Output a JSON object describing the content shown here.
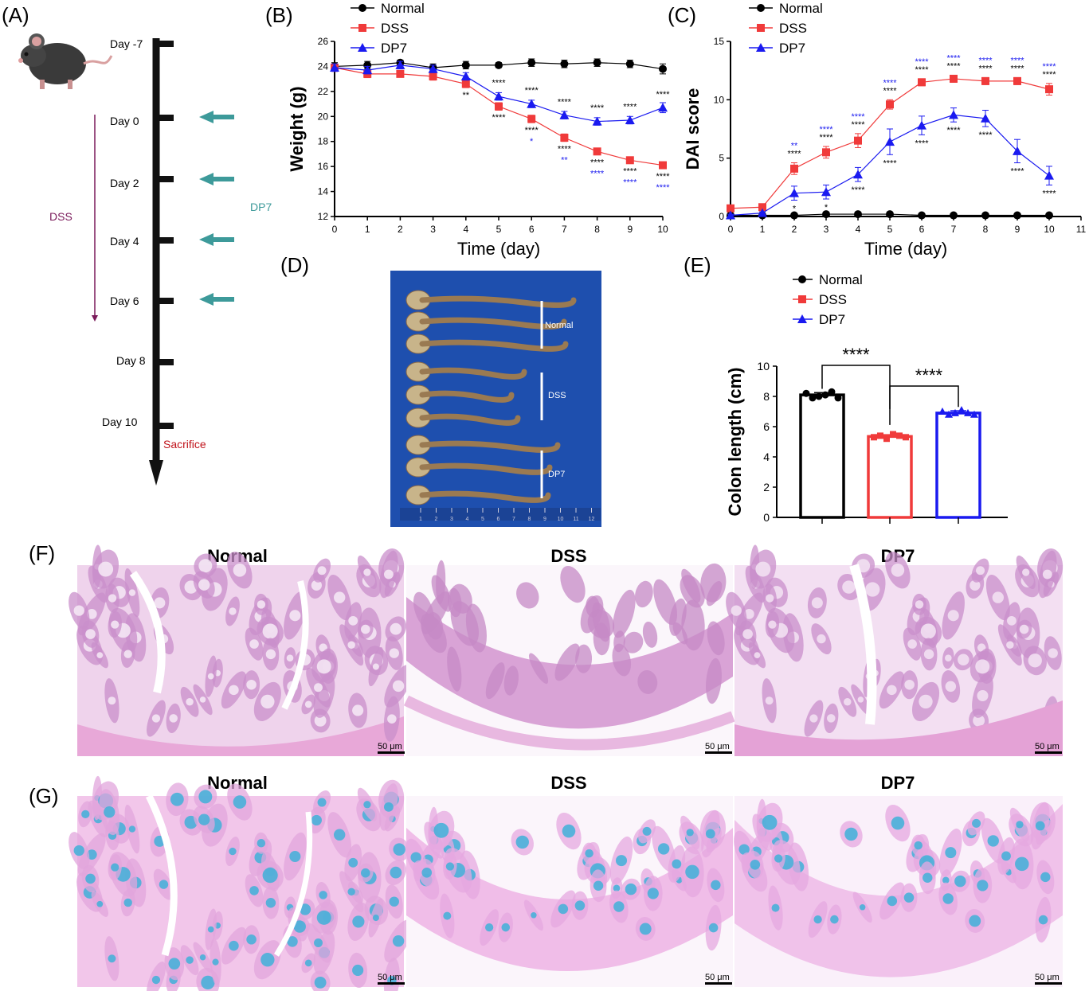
{
  "panel_labels": [
    "(A)",
    "(B)",
    "(C)",
    "(D)",
    "(E)",
    "(F)",
    "(G)"
  ],
  "colors": {
    "normal": "#000000",
    "dss": "#f03a3a",
    "dp7": "#1a1af0",
    "dss_arrow": "#7a1a5a",
    "dp7_arrow": "#3d9a9a",
    "sacrifice": "#c0121a",
    "he_stain": "#d9a3d6",
    "ab_stain": "#3fb0d8",
    "photo_bg": "#1e4fae"
  },
  "timeline": {
    "days": [
      "Day -7",
      "Day 0",
      "Day 2",
      "Day 4",
      "Day 6",
      "Day 8",
      "Day 10"
    ],
    "dss_label": "DSS",
    "dp7_label": "DP7",
    "sacrifice_label": "Sacrifice",
    "mouse_icon": "mouse-icon"
  },
  "chart_data": [
    {
      "panel": "(B)",
      "type": "line",
      "xlabel": "Time (day)",
      "ylabel": "Weight (g)",
      "xlim": [
        0,
        10
      ],
      "ylim": [
        12,
        26
      ],
      "xticks": [
        "0",
        "1",
        "2",
        "3",
        "4",
        "5",
        "6",
        "7",
        "8",
        "9",
        "10"
      ],
      "yticks": [
        "12",
        "14",
        "16",
        "18",
        "20",
        "22",
        "24",
        "26"
      ],
      "legend_position": "top",
      "x": [
        0,
        1,
        2,
        3,
        4,
        5,
        6,
        7,
        8,
        9,
        10
      ],
      "series": [
        {
          "name": "Normal",
          "marker": "circle",
          "values": [
            24.0,
            24.1,
            24.3,
            23.9,
            24.1,
            24.1,
            24.3,
            24.2,
            24.3,
            24.2,
            23.8
          ],
          "errors": [
            0.3,
            0.3,
            0.2,
            0.3,
            0.3,
            0.2,
            0.3,
            0.3,
            0.3,
            0.3,
            0.4
          ]
        },
        {
          "name": "DSS",
          "marker": "square",
          "values": [
            23.9,
            23.4,
            23.4,
            23.2,
            22.6,
            20.8,
            19.8,
            18.3,
            17.2,
            16.5,
            16.1
          ],
          "errors": [
            0.3,
            0.3,
            0.2,
            0.3,
            0.3,
            0.3,
            0.3,
            0.3,
            0.2,
            0.2,
            0.2
          ]
        },
        {
          "name": "DP7",
          "marker": "triangle",
          "values": [
            23.9,
            23.7,
            24.1,
            23.8,
            23.2,
            21.6,
            21.0,
            20.1,
            19.6,
            19.7,
            20.7
          ],
          "errors": [
            0.3,
            0.3,
            0.3,
            0.3,
            0.3,
            0.3,
            0.3,
            0.3,
            0.3,
            0.3,
            0.4
          ]
        }
      ],
      "annotations": [
        {
          "x": 4,
          "text": "**",
          "color": "black"
        },
        {
          "x": 5,
          "text": "****",
          "color": "black",
          "pos": "upper"
        },
        {
          "x": 5,
          "text": "****",
          "color": "black"
        },
        {
          "x": 6,
          "text": "****",
          "color": "black",
          "pos": "upper"
        },
        {
          "x": 6,
          "text": "****",
          "color": "black"
        },
        {
          "x": 6,
          "text": "*",
          "color": "blue"
        },
        {
          "x": 7,
          "text": "****",
          "color": "black",
          "pos": "upper"
        },
        {
          "x": 7,
          "text": "****",
          "color": "black"
        },
        {
          "x": 7,
          "text": "**",
          "color": "blue"
        },
        {
          "x": 8,
          "text": "****",
          "color": "black",
          "pos": "upper"
        },
        {
          "x": 8,
          "text": "****",
          "color": "black"
        },
        {
          "x": 8,
          "text": "****",
          "color": "blue"
        },
        {
          "x": 9,
          "text": "****",
          "color": "black",
          "pos": "upper"
        },
        {
          "x": 9,
          "text": "****",
          "color": "black"
        },
        {
          "x": 9,
          "text": "****",
          "color": "blue"
        },
        {
          "x": 10,
          "text": "****",
          "color": "black",
          "pos": "upper"
        },
        {
          "x": 10,
          "text": "****",
          "color": "black"
        },
        {
          "x": 10,
          "text": "****",
          "color": "blue"
        }
      ]
    },
    {
      "panel": "(C)",
      "type": "line",
      "xlabel": "Time (day)",
      "ylabel": "DAI score",
      "xlim": [
        0,
        11
      ],
      "ylim": [
        0,
        15
      ],
      "xticks": [
        "0",
        "1",
        "2",
        "3",
        "4",
        "5",
        "6",
        "7",
        "8",
        "9",
        "10",
        "11"
      ],
      "yticks": [
        "0",
        "5",
        "10",
        "15"
      ],
      "legend_position": "top",
      "x": [
        0,
        1,
        2,
        3,
        4,
        5,
        6,
        7,
        8,
        9,
        10
      ],
      "series": [
        {
          "name": "Normal",
          "marker": "circle",
          "values": [
            0.1,
            0.1,
            0.1,
            0.2,
            0.2,
            0.2,
            0.1,
            0.1,
            0.1,
            0.1,
            0.1
          ],
          "errors": [
            0.1,
            0.1,
            0.1,
            0.1,
            0.1,
            0.1,
            0.1,
            0.1,
            0.1,
            0.1,
            0.1
          ]
        },
        {
          "name": "DSS",
          "marker": "square",
          "values": [
            0.7,
            0.8,
            4.1,
            5.5,
            6.5,
            9.6,
            11.5,
            11.8,
            11.6,
            11.6,
            10.9
          ],
          "errors": [
            0.2,
            0.2,
            0.5,
            0.5,
            0.6,
            0.4,
            0.3,
            0.3,
            0.3,
            0.3,
            0.5
          ]
        },
        {
          "name": "DP7",
          "marker": "triangle",
          "values": [
            0.1,
            0.3,
            2.0,
            2.1,
            3.6,
            6.4,
            7.8,
            8.7,
            8.4,
            5.6,
            3.5
          ],
          "errors": [
            0.1,
            0.1,
            0.6,
            0.6,
            0.6,
            1.1,
            0.8,
            0.6,
            0.7,
            1.0,
            0.8
          ]
        }
      ],
      "annotations": [
        {
          "x": 2,
          "text": "**",
          "color": "blue"
        },
        {
          "x": 2,
          "text": "****",
          "color": "black"
        },
        {
          "x": 2,
          "text": "*",
          "color": "black",
          "pos": "lower"
        },
        {
          "x": 3,
          "text": "****",
          "color": "blue"
        },
        {
          "x": 3,
          "text": "****",
          "color": "black"
        },
        {
          "x": 3,
          "text": "*",
          "color": "black",
          "pos": "lower"
        },
        {
          "x": 4,
          "text": "****",
          "color": "blue"
        },
        {
          "x": 4,
          "text": "****",
          "color": "black"
        },
        {
          "x": 4,
          "text": "****",
          "color": "black",
          "pos": "lower"
        },
        {
          "x": 5,
          "text": "****",
          "color": "blue"
        },
        {
          "x": 5,
          "text": "****",
          "color": "black"
        },
        {
          "x": 5,
          "text": "****",
          "color": "black",
          "pos": "lower"
        },
        {
          "x": 6,
          "text": "****",
          "color": "blue"
        },
        {
          "x": 6,
          "text": "****",
          "color": "black"
        },
        {
          "x": 6,
          "text": "****",
          "color": "black",
          "pos": "lower"
        },
        {
          "x": 7,
          "text": "****",
          "color": "blue"
        },
        {
          "x": 7,
          "text": "****",
          "color": "black"
        },
        {
          "x": 7,
          "text": "****",
          "color": "black",
          "pos": "lower"
        },
        {
          "x": 8,
          "text": "****",
          "color": "blue"
        },
        {
          "x": 8,
          "text": "****",
          "color": "black"
        },
        {
          "x": 8,
          "text": "****",
          "color": "black",
          "pos": "lower"
        },
        {
          "x": 9,
          "text": "****",
          "color": "blue"
        },
        {
          "x": 9,
          "text": "****",
          "color": "black"
        },
        {
          "x": 9,
          "text": "****",
          "color": "black",
          "pos": "lower"
        },
        {
          "x": 10,
          "text": "****",
          "color": "blue"
        },
        {
          "x": 10,
          "text": "****",
          "color": "black"
        },
        {
          "x": 10,
          "text": "****",
          "color": "black",
          "pos": "lower"
        }
      ]
    },
    {
      "panel": "(E)",
      "type": "bar",
      "xlabel": "",
      "ylabel": "Colon length (cm)",
      "ylim": [
        0,
        10
      ],
      "yticks": [
        "0",
        "2",
        "4",
        "6",
        "8",
        "10"
      ],
      "legend_position": "top",
      "categories": [
        "Normal",
        "DSS",
        "DP7"
      ],
      "values": [
        8.1,
        5.35,
        6.9
      ],
      "errors": [
        0.15,
        0.12,
        0.15
      ],
      "points": [
        [
          8.2,
          7.9,
          8.0,
          8.1,
          8.3,
          7.9
        ],
        [
          5.3,
          5.4,
          5.2,
          5.5,
          5.4,
          5.3
        ],
        [
          7.0,
          6.8,
          6.9,
          7.1,
          6.9,
          6.8
        ]
      ],
      "significance": [
        {
          "between": [
            "Normal",
            "DSS"
          ],
          "text": "****"
        },
        {
          "between": [
            "DSS",
            "DP7"
          ],
          "text": "****"
        }
      ]
    }
  ],
  "photo": {
    "groups": [
      "Normal",
      "DSS",
      "DP7"
    ],
    "ruler_ticks": [
      "1",
      "2",
      "3",
      "4",
      "5",
      "6",
      "7",
      "8",
      "9",
      "10",
      "11",
      "12"
    ]
  },
  "histology": {
    "titles_F": [
      "Normal",
      "DSS",
      "DP7"
    ],
    "titles_G": [
      "Normal",
      "DSS",
      "DP7"
    ],
    "scale_bar": "50 μm"
  }
}
